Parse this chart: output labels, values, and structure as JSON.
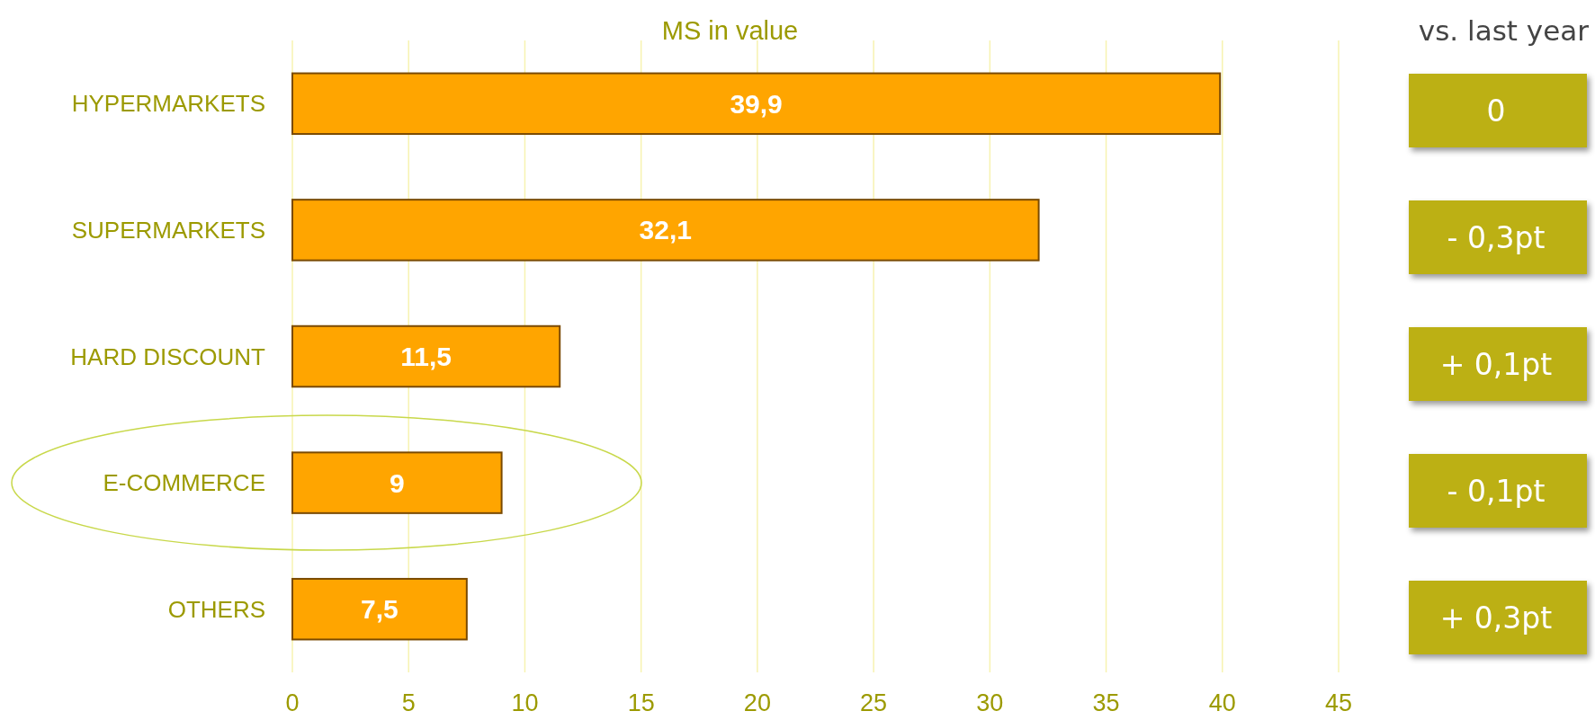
{
  "chart_data": [
    {
      "type": "bar",
      "orientation": "horizontal",
      "title": "MS in value",
      "categories": [
        "HYPERMARKETS",
        "SUPERMARKETS",
        "HARD DISCOUNT",
        "E-COMMERCE",
        "OTHERS"
      ],
      "values": [
        39.9,
        32.1,
        11.5,
        9,
        7.5
      ],
      "color": "#ffa500",
      "value_labels": [
        "39,9",
        "32,1",
        "11,5",
        "9",
        "7,5"
      ],
      "xlim": [
        0,
        45
      ],
      "xticks": [
        0,
        5,
        10,
        15,
        20,
        25,
        30,
        35,
        40,
        45
      ],
      "grid": "x"
    },
    {
      "type": "other",
      "title": "vs. last year",
      "annotations": [
        "0",
        "- 0,3pt",
        "+ 0,1pt",
        "- 0,1pt",
        "+ 0,3pt"
      ]
    }
  ]
}
